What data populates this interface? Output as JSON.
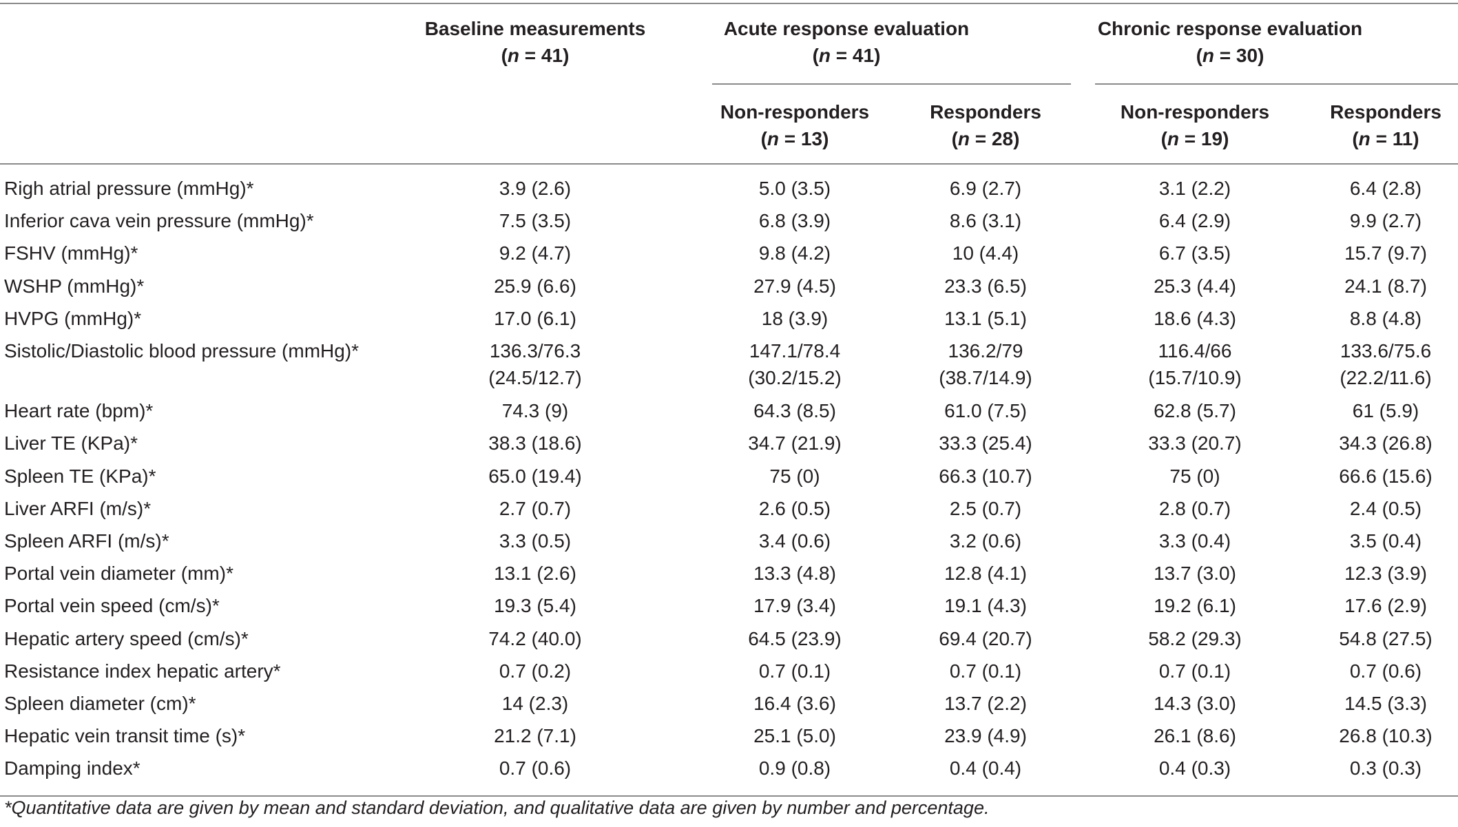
{
  "header": {
    "baseline": {
      "label": "Baseline measurements",
      "n_prefix": "(",
      "n_var": "n",
      "n_value": " = 41)"
    },
    "acute": {
      "label": "Acute response evaluation",
      "n_prefix": "(",
      "n_var": "n",
      "n_value": " = 41)"
    },
    "chronic": {
      "label": "Chronic response evaluation",
      "n_prefix": "(",
      "n_var": "n",
      "n_value": " = 30)"
    },
    "acute_nonresp": {
      "label": "Non-responders",
      "n_prefix": "(",
      "n_var": "n",
      "n_value": " = 13)"
    },
    "acute_resp": {
      "label": "Responders",
      "n_prefix": "(",
      "n_var": "n",
      "n_value": " = 28)"
    },
    "chronic_nonresp": {
      "label": "Non-responders",
      "n_prefix": "(",
      "n_var": "n",
      "n_value": " = 19)"
    },
    "chronic_resp": {
      "label": "Responders",
      "n_prefix": "(",
      "n_var": "n",
      "n_value": " = 11)"
    }
  },
  "rows": [
    {
      "label": "Righ atrial pressure (mmHg)*",
      "values": [
        "3.9 (2.6)",
        "5.0 (3.5)",
        "6.9 (2.7)",
        "3.1 (2.2)",
        "6.4 (2.8)"
      ]
    },
    {
      "label": "Inferior cava vein pressure (mmHg)*",
      "values": [
        "7.5 (3.5)",
        "6.8 (3.9)",
        "8.6 (3.1)",
        "6.4 (2.9)",
        "9.9 (2.7)"
      ]
    },
    {
      "label": "FSHV (mmHg)*",
      "values": [
        "9.2 (4.7)",
        "9.8 (4.2)",
        "10 (4.4)",
        "6.7 (3.5)",
        "15.7 (9.7)"
      ]
    },
    {
      "label": "WSHP (mmHg)*",
      "values": [
        "25.9 (6.6)",
        "27.9 (4.5)",
        "23.3 (6.5)",
        "25.3 (4.4)",
        "24.1 (8.7)"
      ]
    },
    {
      "label": "HVPG (mmHg)*",
      "values": [
        "17.0 (6.1)",
        "18 (3.9)",
        "13.1 (5.1)",
        "18.6 (4.3)",
        "8.8 (4.8)"
      ]
    },
    {
      "label": "Sistolic/Diastolic blood pressure (mmHg)*",
      "values": [
        "136.3/76.3",
        "147.1/78.4",
        "136.2/79",
        "116.4/66",
        "133.6/75.6"
      ],
      "values2": [
        "(24.5/12.7)",
        "(30.2/15.2)",
        "(38.7/14.9)",
        "(15.7/10.9)",
        "(22.2/11.6)"
      ]
    },
    {
      "label": "Heart rate (bpm)*",
      "values": [
        "74.3 (9)",
        "64.3 (8.5)",
        "61.0 (7.5)",
        "62.8 (5.7)",
        "61 (5.9)"
      ]
    },
    {
      "label": "Liver TE (KPa)*",
      "values": [
        "38.3 (18.6)",
        "34.7 (21.9)",
        "33.3 (25.4)",
        "33.3 (20.7)",
        "34.3 (26.8)"
      ]
    },
    {
      "label": "Spleen TE (KPa)*",
      "values": [
        "65.0 (19.4)",
        "75 (0)",
        "66.3 (10.7)",
        "75 (0)",
        "66.6 (15.6)"
      ]
    },
    {
      "label": "Liver ARFI (m/s)*",
      "values": [
        "2.7 (0.7)",
        "2.6 (0.5)",
        "2.5 (0.7)",
        "2.8 (0.7)",
        "2.4 (0.5)"
      ]
    },
    {
      "label": "Spleen ARFI (m/s)*",
      "values": [
        "3.3 (0.5)",
        "3.4 (0.6)",
        "3.2 (0.6)",
        "3.3 (0.4)",
        "3.5 (0.4)"
      ]
    },
    {
      "label": "Portal vein diameter (mm)*",
      "values": [
        "13.1 (2.6)",
        "13.3 (4.8)",
        "12.8 (4.1)",
        "13.7 (3.0)",
        "12.3 (3.9)"
      ]
    },
    {
      "label": "Portal vein speed (cm/s)*",
      "values": [
        "19.3 (5.4)",
        "17.9 (3.4)",
        "19.1 (4.3)",
        "19.2 (6.1)",
        "17.6 (2.9)"
      ]
    },
    {
      "label": "Hepatic artery speed (cm/s)*",
      "values": [
        "74.2 (40.0)",
        "64.5 (23.9)",
        "69.4 (20.7)",
        "58.2 (29.3)",
        "54.8 (27.5)"
      ]
    },
    {
      "label": "Resistance index hepatic artery*",
      "values": [
        "0.7 (0.2)",
        "0.7 (0.1)",
        "0.7 (0.1)",
        "0.7 (0.1)",
        "0.7 (0.6)"
      ]
    },
    {
      "label": "Spleen diameter (cm)*",
      "values": [
        "14 (2.3)",
        "16.4 (3.6)",
        "13.7 (2.2)",
        "14.3 (3.0)",
        "14.5 (3.3)"
      ]
    },
    {
      "label": "Hepatic vein transit time (s)*",
      "values": [
        "21.2 (7.1)",
        "25.1 (5.0)",
        "23.9 (4.9)",
        "26.1 (8.6)",
        "26.8 (10.3)"
      ]
    },
    {
      "label": "Damping index*",
      "values": [
        "0.7 (0.6)",
        "0.9 (0.8)",
        "0.4 (0.4)",
        "0.4 (0.3)",
        "0.3 (0.3)"
      ]
    }
  ],
  "footnote": "*Quantitative data are given by mean and standard deviation, and qualitative data are given by number and percentage."
}
